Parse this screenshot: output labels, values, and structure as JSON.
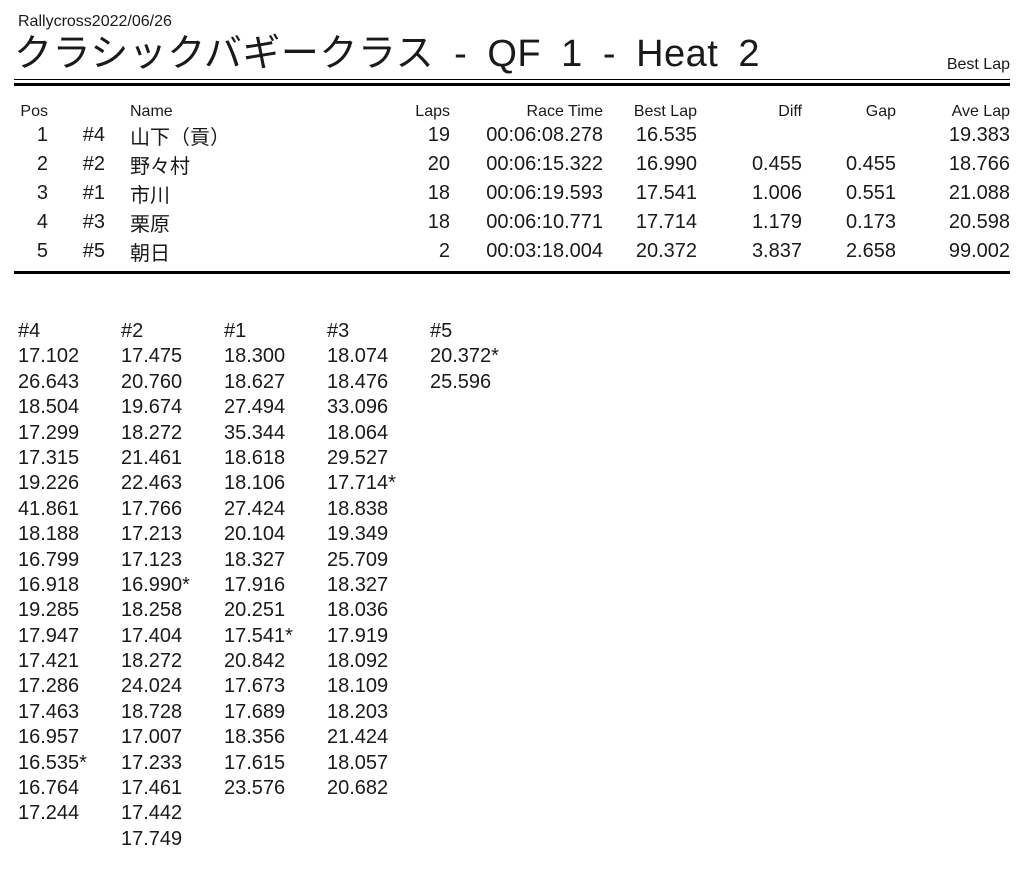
{
  "header": {
    "event_label": "Rallycross2022/06/26",
    "title": "クラシックバギークラス - QF 1 - Heat 2",
    "corner_label": "Best Lap"
  },
  "results": {
    "columns": [
      {
        "key": "pos",
        "label": "Pos"
      },
      {
        "key": "car",
        "label": ""
      },
      {
        "key": "name",
        "label": "Name"
      },
      {
        "key": "laps",
        "label": "Laps"
      },
      {
        "key": "race_time",
        "label": "Race Time"
      },
      {
        "key": "best_lap",
        "label": "Best Lap"
      },
      {
        "key": "diff",
        "label": "Diff"
      },
      {
        "key": "gap",
        "label": "Gap"
      },
      {
        "key": "ave_lap",
        "label": "Ave Lap"
      }
    ],
    "rows": [
      {
        "pos": "1",
        "car": "#4",
        "name": "山下（貢）",
        "laps": "19",
        "race_time": "00:06:08.278",
        "best_lap": "16.535",
        "diff": "",
        "gap": "",
        "ave_lap": "19.383"
      },
      {
        "pos": "2",
        "car": "#2",
        "name": "野々村",
        "laps": "20",
        "race_time": "00:06:15.322",
        "best_lap": "16.990",
        "diff": "0.455",
        "gap": "0.455",
        "ave_lap": "18.766"
      },
      {
        "pos": "3",
        "car": "#1",
        "name": "市川",
        "laps": "18",
        "race_time": "00:06:19.593",
        "best_lap": "17.541",
        "diff": "1.006",
        "gap": "0.551",
        "ave_lap": "21.088"
      },
      {
        "pos": "4",
        "car": "#3",
        "name": "栗原",
        "laps": "18",
        "race_time": "00:06:10.771",
        "best_lap": "17.714",
        "diff": "1.179",
        "gap": "0.173",
        "ave_lap": "20.598"
      },
      {
        "pos": "5",
        "car": "#5",
        "name": "朝日",
        "laps": "2",
        "race_time": "00:03:18.004",
        "best_lap": "20.372",
        "diff": "3.837",
        "gap": "2.658",
        "ave_lap": "99.002"
      }
    ]
  },
  "lap_chart": {
    "columns": [
      {
        "car": "#4",
        "laps": [
          "17.102",
          "26.643",
          "18.504",
          "17.299",
          "17.315",
          "19.226",
          "41.861",
          "18.188",
          "16.799",
          "16.918",
          "19.285",
          "17.947",
          "17.421",
          "17.286",
          "17.463",
          "16.957",
          "16.535*",
          "16.764",
          "17.244"
        ]
      },
      {
        "car": "#2",
        "laps": [
          "17.475",
          "20.760",
          "19.674",
          "18.272",
          "21.461",
          "22.463",
          "17.766",
          "17.213",
          "17.123",
          "16.990*",
          "18.258",
          "17.404",
          "18.272",
          "24.024",
          "18.728",
          "17.007",
          "17.233",
          "17.461",
          "17.442",
          "17.749"
        ]
      },
      {
        "car": "#1",
        "laps": [
          "18.300",
          "18.627",
          "27.494",
          "35.344",
          "18.618",
          "18.106",
          "27.424",
          "20.104",
          "18.327",
          "17.916",
          "20.251",
          "17.541*",
          "20.842",
          "17.673",
          "17.689",
          "18.356",
          "17.615",
          "23.576"
        ]
      },
      {
        "car": "#3",
        "laps": [
          "18.074",
          "18.476",
          "33.096",
          "18.064",
          "29.527",
          "17.714*",
          "18.838",
          "19.349",
          "25.709",
          "18.327",
          "18.036",
          "17.919",
          "18.092",
          "18.109",
          "18.203",
          "21.424",
          "18.057",
          "20.682"
        ]
      },
      {
        "car": "#5",
        "laps": [
          "20.372*",
          "25.596"
        ]
      }
    ]
  }
}
